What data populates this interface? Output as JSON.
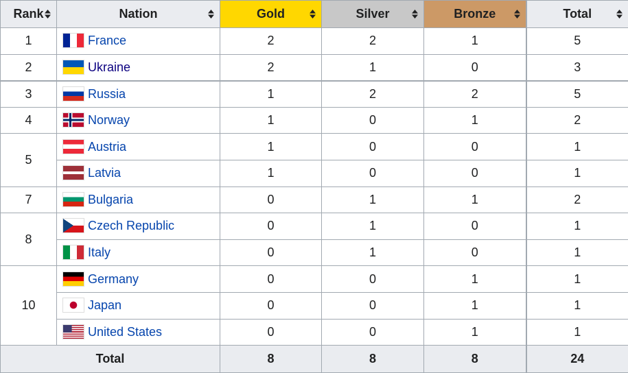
{
  "table": {
    "header": [
      "Rank",
      "Nation",
      "Gold",
      "Silver",
      "Bronze",
      "Total"
    ],
    "groups": [
      {
        "rank": "1",
        "rows": [
          {
            "nation": "France",
            "gold": "2",
            "silver": "2",
            "bronze": "1",
            "total": "5"
          }
        ]
      },
      {
        "rank": "2",
        "rows": [
          {
            "nation": "Ukraine",
            "gold": "2",
            "silver": "1",
            "bronze": "0",
            "total": "3"
          }
        ]
      },
      {
        "rank": "3",
        "rows": [
          {
            "nation": "Russia",
            "gold": "1",
            "silver": "2",
            "bronze": "2",
            "total": "5"
          }
        ]
      },
      {
        "rank": "4",
        "rows": [
          {
            "nation": "Norway",
            "gold": "1",
            "silver": "0",
            "bronze": "1",
            "total": "2"
          }
        ]
      },
      {
        "rank": "5",
        "rows": [
          {
            "nation": "Austria",
            "gold": "1",
            "silver": "0",
            "bronze": "0",
            "total": "1"
          },
          {
            "nation": "Latvia",
            "gold": "1",
            "silver": "0",
            "bronze": "0",
            "total": "1"
          }
        ]
      },
      {
        "rank": "7",
        "rows": [
          {
            "nation": "Bulgaria",
            "gold": "0",
            "silver": "1",
            "bronze": "1",
            "total": "2"
          }
        ]
      },
      {
        "rank": "8",
        "rows": [
          {
            "nation": "Czech Republic",
            "gold": "0",
            "silver": "1",
            "bronze": "0",
            "total": "1"
          },
          {
            "nation": "Italy",
            "gold": "0",
            "silver": "1",
            "bronze": "0",
            "total": "1"
          }
        ]
      },
      {
        "rank": "10",
        "rows": [
          {
            "nation": "Germany",
            "gold": "0",
            "silver": "0",
            "bronze": "1",
            "total": "1"
          },
          {
            "nation": "Japan",
            "gold": "0",
            "silver": "0",
            "bronze": "1",
            "total": "1"
          },
          {
            "nation": "United States",
            "gold": "0",
            "silver": "0",
            "bronze": "1",
            "total": "1"
          }
        ]
      }
    ],
    "footer": {
      "label": "Total",
      "gold": "8",
      "silver": "8",
      "bronze": "8",
      "total": "24"
    }
  }
}
